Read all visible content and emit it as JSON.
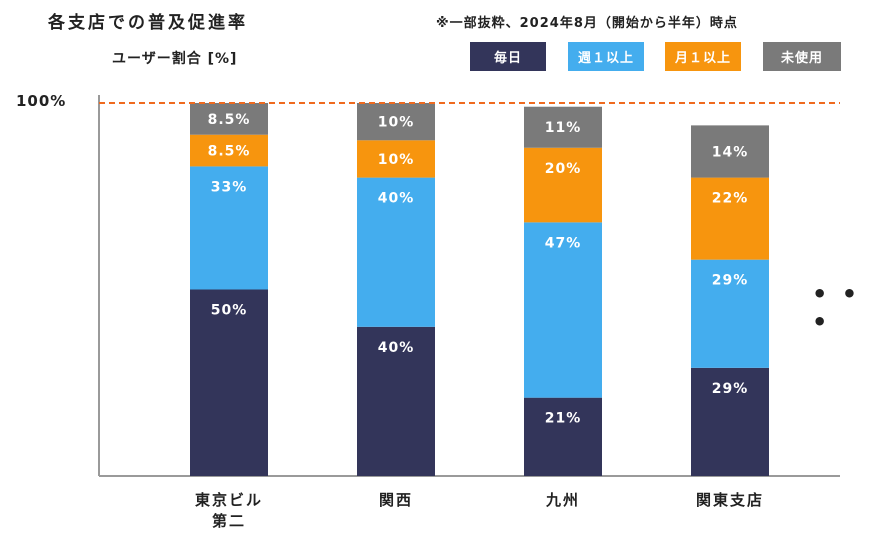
{
  "title": "各支店での普及促進率",
  "note": "※一部抜粋、2024年8月（開始から半年）時点",
  "reference_line_label": "100%",
  "ellipsis": "• • •",
  "colors": {
    "daily": "#33355a",
    "weekly": "#44adee",
    "monthly": "#f7950e",
    "unused": "#7a7a7a",
    "reference_line": "#ef6a1f",
    "axis": "#9a9a9a"
  },
  "chart_data": {
    "type": "bar",
    "stacked": true,
    "title": "各支店での普及促進率",
    "ylabel": "ユーザー割合 [%]",
    "ylim": [
      0,
      100
    ],
    "reference_line": 100,
    "legend_position": "top-right",
    "categories": [
      [
        "東京ビル",
        "第二"
      ],
      [
        "関西"
      ],
      [
        "九州"
      ],
      [
        "関東支店"
      ]
    ],
    "series": [
      {
        "name": "毎日",
        "key": "daily",
        "values": [
          50,
          40,
          21,
          29
        ],
        "labels": [
          "50%",
          "40%",
          "21%",
          "29%"
        ]
      },
      {
        "name": "週１以上",
        "key": "weekly",
        "values": [
          33,
          40,
          47,
          29
        ],
        "labels": [
          "33%",
          "40%",
          "47%",
          "29%"
        ]
      },
      {
        "name": "月１以上",
        "key": "monthly",
        "values": [
          8.5,
          10,
          20,
          22
        ],
        "labels": [
          "8.5%",
          "10%",
          "20%",
          "22%"
        ]
      },
      {
        "name": "未使用",
        "key": "unused",
        "values": [
          8.5,
          10,
          11,
          14
        ],
        "labels": [
          "8.5%",
          "10%",
          "11%",
          "14%"
        ]
      }
    ]
  }
}
